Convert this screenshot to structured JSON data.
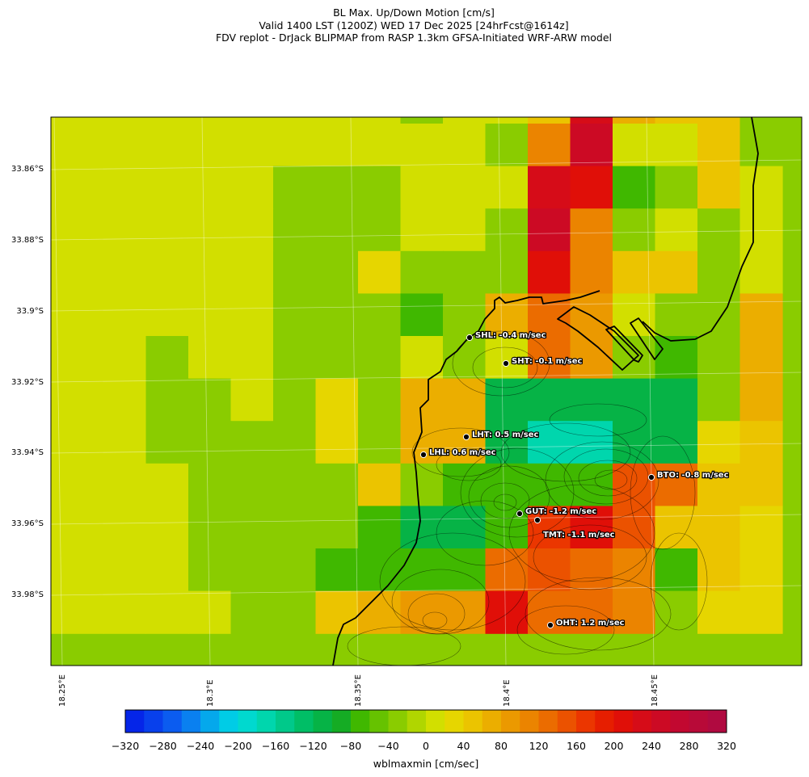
{
  "title": {
    "line1": "BL Max. Up/Down Motion [cm/s]",
    "line2": "Valid 1400 LST (1200Z) WED 17 Dec 2025 [24hrFcst@1614z]",
    "line3": "FDV replot - DrJack BLIPMAP from RASP 1.3km GFSA-Initiated WRF-ARW model"
  },
  "map": {
    "lat_labels": [
      "33.86°S",
      "33.88°S",
      "33.9°S",
      "33.92°S",
      "33.94°S",
      "33.96°S",
      "33.98°S"
    ],
    "lon_labels": [
      "18.25°E",
      "18.3°E",
      "18.35°E",
      "18.4°E",
      "18.45°E"
    ],
    "grid_values": [
      [
        0,
        0,
        0,
        0,
        0,
        0,
        0,
        0,
        0,
        -40,
        0,
        0,
        40,
        230,
        60,
        50,
        40,
        -40
      ],
      [
        0,
        0,
        0,
        0,
        0,
        0,
        0,
        0,
        0,
        0,
        0,
        -40,
        100,
        240,
        0,
        0,
        40,
        -40
      ],
      [
        0,
        0,
        0,
        0,
        0,
        0,
        -40,
        -40,
        -40,
        0,
        0,
        0,
        220,
        200,
        -80,
        -40,
        40,
        0
      ],
      [
        0,
        0,
        0,
        0,
        0,
        0,
        -40,
        -40,
        -40,
        0,
        0,
        -40,
        240,
        100,
        -40,
        0,
        -40,
        0
      ],
      [
        0,
        0,
        0,
        0,
        0,
        0,
        -40,
        -40,
        20,
        -40,
        -40,
        -40,
        200,
        100,
        40,
        40,
        -40,
        0
      ],
      [
        0,
        0,
        0,
        0,
        0,
        0,
        -40,
        -40,
        -40,
        -80,
        -40,
        60,
        120,
        80,
        0,
        -40,
        -40,
        60
      ],
      [
        0,
        0,
        0,
        -40,
        0,
        0,
        -40,
        -40,
        -40,
        0,
        -40,
        0,
        120,
        80,
        -40,
        -80,
        -40,
        60
      ],
      [
        0,
        0,
        0,
        -40,
        -40,
        0,
        -40,
        20,
        -40,
        60,
        60,
        -120,
        -120,
        -120,
        -120,
        -120,
        -40,
        60
      ],
      [
        0,
        0,
        0,
        -40,
        -40,
        -40,
        -40,
        20,
        -40,
        60,
        60,
        -120,
        -180,
        -180,
        -120,
        -120,
        20,
        40
      ],
      [
        0,
        0,
        0,
        0,
        -40,
        -40,
        -40,
        -40,
        40,
        -40,
        -80,
        -80,
        -80,
        -80,
        140,
        120,
        40,
        40
      ],
      [
        0,
        0,
        0,
        0,
        -40,
        -40,
        -40,
        -40,
        -80,
        -120,
        -120,
        -80,
        160,
        200,
        140,
        40,
        40,
        20
      ],
      [
        0,
        0,
        0,
        0,
        -40,
        -40,
        -40,
        -80,
        -80,
        -80,
        -80,
        120,
        140,
        120,
        100,
        -80,
        40,
        20
      ],
      [
        0,
        0,
        0,
        0,
        0,
        -40,
        -40,
        40,
        60,
        80,
        80,
        200,
        120,
        120,
        100,
        -40,
        20,
        20
      ]
    ],
    "stations": [
      {
        "id": "SHL",
        "label": "SHL: -0.4 m/sec"
      },
      {
        "id": "SHT",
        "label": "SHT: -0.1 m/sec"
      },
      {
        "id": "LHT",
        "label": "LHT: 0.5 m/sec"
      },
      {
        "id": "LHL",
        "label": "LHL: 0.6 m/sec"
      },
      {
        "id": "BTO",
        "label": "BTO: -0.8 m/sec"
      },
      {
        "id": "GUT",
        "label": "GUT: -1.2 m/sec"
      },
      {
        "id": "TMT",
        "label": "TMT: -1.1 m/sec"
      },
      {
        "id": "OHT",
        "label": "OHT: 1.2 m/sec"
      }
    ]
  },
  "colorbar": {
    "min": -320,
    "max": 320,
    "step": 20,
    "ticks": [
      "−320",
      "−280",
      "−240",
      "−200",
      "−160",
      "−120",
      "−80",
      "−40",
      "0",
      "40",
      "80",
      "120",
      "160",
      "200",
      "240",
      "280",
      "320"
    ],
    "title": "wblmaxmin [cm/sec]",
    "colors": [
      "#0525e8",
      "#0840ec",
      "#0b5cf0",
      "#0a80f0",
      "#05a8ec",
      "#00cce6",
      "#00d9cf",
      "#00d6ad",
      "#00c98a",
      "#00be66",
      "#06b346",
      "#15ac24",
      "#40b800",
      "#66c200",
      "#8acc00",
      "#b0d600",
      "#d2df00",
      "#e6d600",
      "#ebc400",
      "#ebae00",
      "#eb9900",
      "#eb8400",
      "#eb6c00",
      "#eb5200",
      "#eb3600",
      "#e61e00",
      "#e00f08",
      "#d60c18",
      "#cc0a24",
      "#c20830",
      "#b80a38",
      "#b00a40"
    ]
  }
}
